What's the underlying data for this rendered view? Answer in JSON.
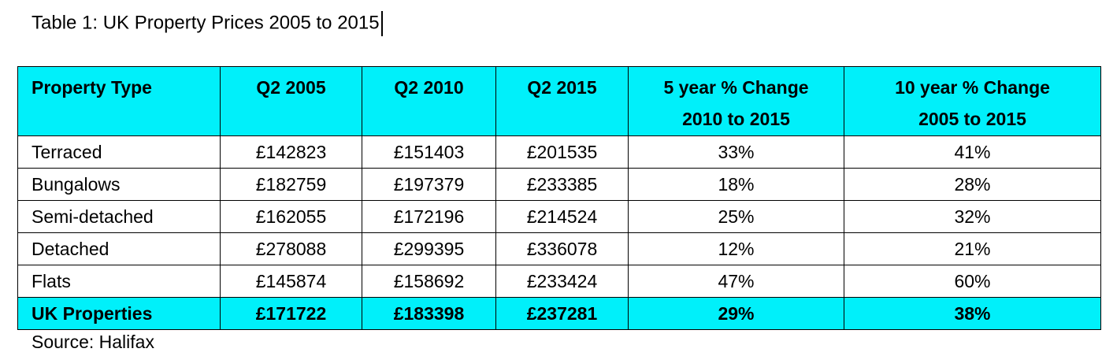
{
  "title": "Table 1: UK Property Prices 2005 to 2015",
  "table": {
    "header": [
      [
        "Property Type"
      ],
      [
        "Q2 2005"
      ],
      [
        "Q2 2010"
      ],
      [
        "Q2 2015"
      ],
      [
        "5 year % Change",
        "2010 to 2015"
      ],
      [
        "10 year % Change",
        "2005 to 2015"
      ]
    ],
    "rows": [
      [
        "Terraced",
        "£142823",
        "£151403",
        "£201535",
        "33%",
        "41%"
      ],
      [
        "Bungalows",
        "£182759",
        "£197379",
        "£233385",
        "18%",
        "28%"
      ],
      [
        "Semi-detached",
        "£162055",
        "£172196",
        "£214524",
        "25%",
        "32%"
      ],
      [
        "Detached",
        "£278088",
        "£299395",
        "£336078",
        "12%",
        "21%"
      ],
      [
        "Flats",
        "£145874",
        "£158692",
        "£233424",
        "47%",
        "60%"
      ]
    ],
    "total": [
      "UK Properties",
      "£171722",
      "£183398",
      "£237281",
      "29%",
      "38%"
    ]
  },
  "source": "Source: Halifax"
}
